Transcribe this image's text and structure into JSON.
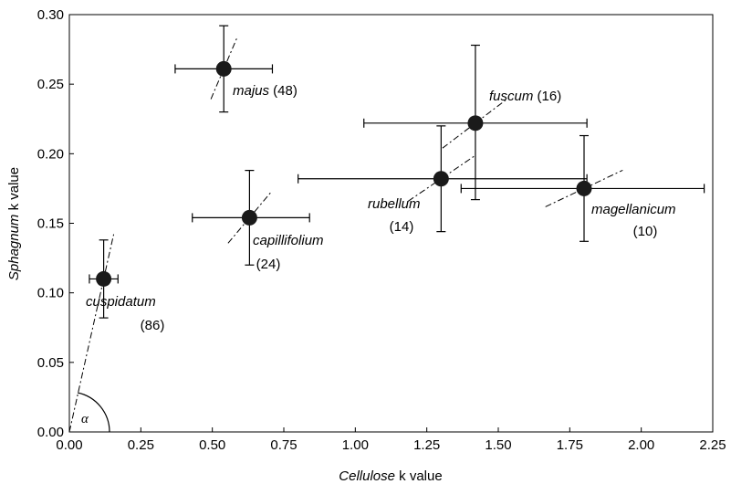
{
  "chart_data": {
    "type": "scatter",
    "title": "",
    "xlabel": {
      "italic_part": "Cellulose",
      "rest": " k value"
    },
    "ylabel": {
      "italic_part": "Sphagnum",
      "rest": " k value"
    },
    "xlim": [
      0,
      2.25
    ],
    "ylim": [
      0,
      0.3
    ],
    "xticks": [
      "0.00",
      "0.25",
      "0.50",
      "0.75",
      "1.00",
      "1.25",
      "1.50",
      "1.75",
      "2.00",
      "2.25"
    ],
    "yticks": [
      "0.00",
      "0.05",
      "0.10",
      "0.15",
      "0.20",
      "0.25",
      "0.30"
    ],
    "grid": false,
    "error_bars": true,
    "points": [
      {
        "species": "cuspidatum",
        "n": "(86)",
        "x": 0.12,
        "y": 0.11,
        "x_err": [
          0.07,
          0.17
        ],
        "y_err": [
          0.082,
          0.138
        ]
      },
      {
        "species": "capillifolium",
        "n": "(24)",
        "x": 0.63,
        "y": 0.154,
        "x_err": [
          0.43,
          0.84
        ],
        "y_err": [
          0.12,
          0.188
        ]
      },
      {
        "species": "majus",
        "n": "(48)",
        "x": 0.54,
        "y": 0.261,
        "x_err": [
          0.37,
          0.71
        ],
        "y_err": [
          0.23,
          0.292
        ]
      },
      {
        "species": "rubellum",
        "n": "(14)",
        "x": 1.3,
        "y": 0.182,
        "x_err": [
          0.8,
          1.81
        ],
        "y_err": [
          0.144,
          0.22
        ]
      },
      {
        "species": "fuscum",
        "n": "(16)",
        "x": 1.42,
        "y": 0.222,
        "x_err": [
          1.03,
          1.81
        ],
        "y_err": [
          0.167,
          0.278
        ]
      },
      {
        "species": "magellanicum",
        "n": "(10)",
        "x": 1.8,
        "y": 0.175,
        "x_err": [
          1.37,
          2.22
        ],
        "y_err": [
          0.137,
          0.213
        ]
      }
    ],
    "annotations": {
      "angle_symbol": "α"
    }
  }
}
